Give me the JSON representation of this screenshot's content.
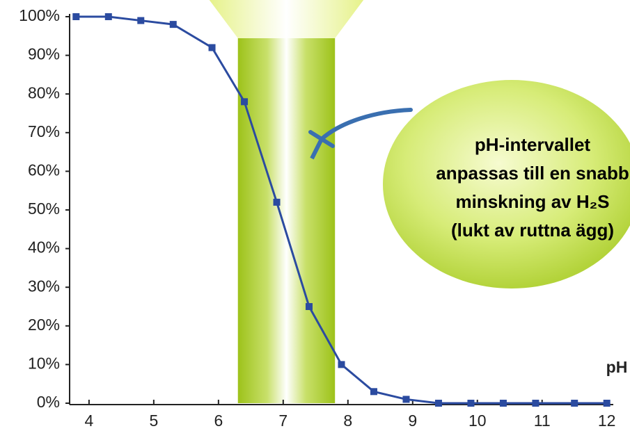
{
  "chart_data": {
    "type": "line",
    "x": [
      3.8,
      4.3,
      4.8,
      5.3,
      5.9,
      6.4,
      6.9,
      7.4,
      7.9,
      8.4,
      8.9,
      9.4,
      9.9,
      10.4,
      10.9,
      11.5,
      12.0
    ],
    "values": [
      100,
      100,
      99,
      98,
      92,
      78,
      52,
      25,
      10,
      3,
      1,
      0,
      0,
      0,
      0,
      0,
      0
    ],
    "color": "#2b4ba0",
    "xlim": [
      3.7,
      12.1
    ],
    "ylim": [
      0,
      100
    ],
    "xticks": [
      4,
      5,
      6,
      7,
      8,
      9,
      10,
      11,
      12
    ],
    "yticks": [
      {
        "value": 0,
        "label": "0%"
      },
      {
        "value": 10,
        "label": "10%"
      },
      {
        "value": 20,
        "label": "20%"
      },
      {
        "value": 30,
        "label": "30%"
      },
      {
        "value": 40,
        "label": "40%"
      },
      {
        "value": 50,
        "label": "50%"
      },
      {
        "value": 60,
        "label": "60%"
      },
      {
        "value": 70,
        "label": "70%"
      },
      {
        "value": 80,
        "label": "80%"
      },
      {
        "value": 90,
        "label": "90%"
      },
      {
        "value": 100,
        "label": "100%"
      }
    ],
    "xlabel": "pH",
    "band": [
      6.3,
      7.8
    ],
    "annotation": [
      "pH-intervallet",
      "anpassas till en snabb",
      "minskning av H₂S",
      "(lukt av ruttna ägg)"
    ]
  }
}
